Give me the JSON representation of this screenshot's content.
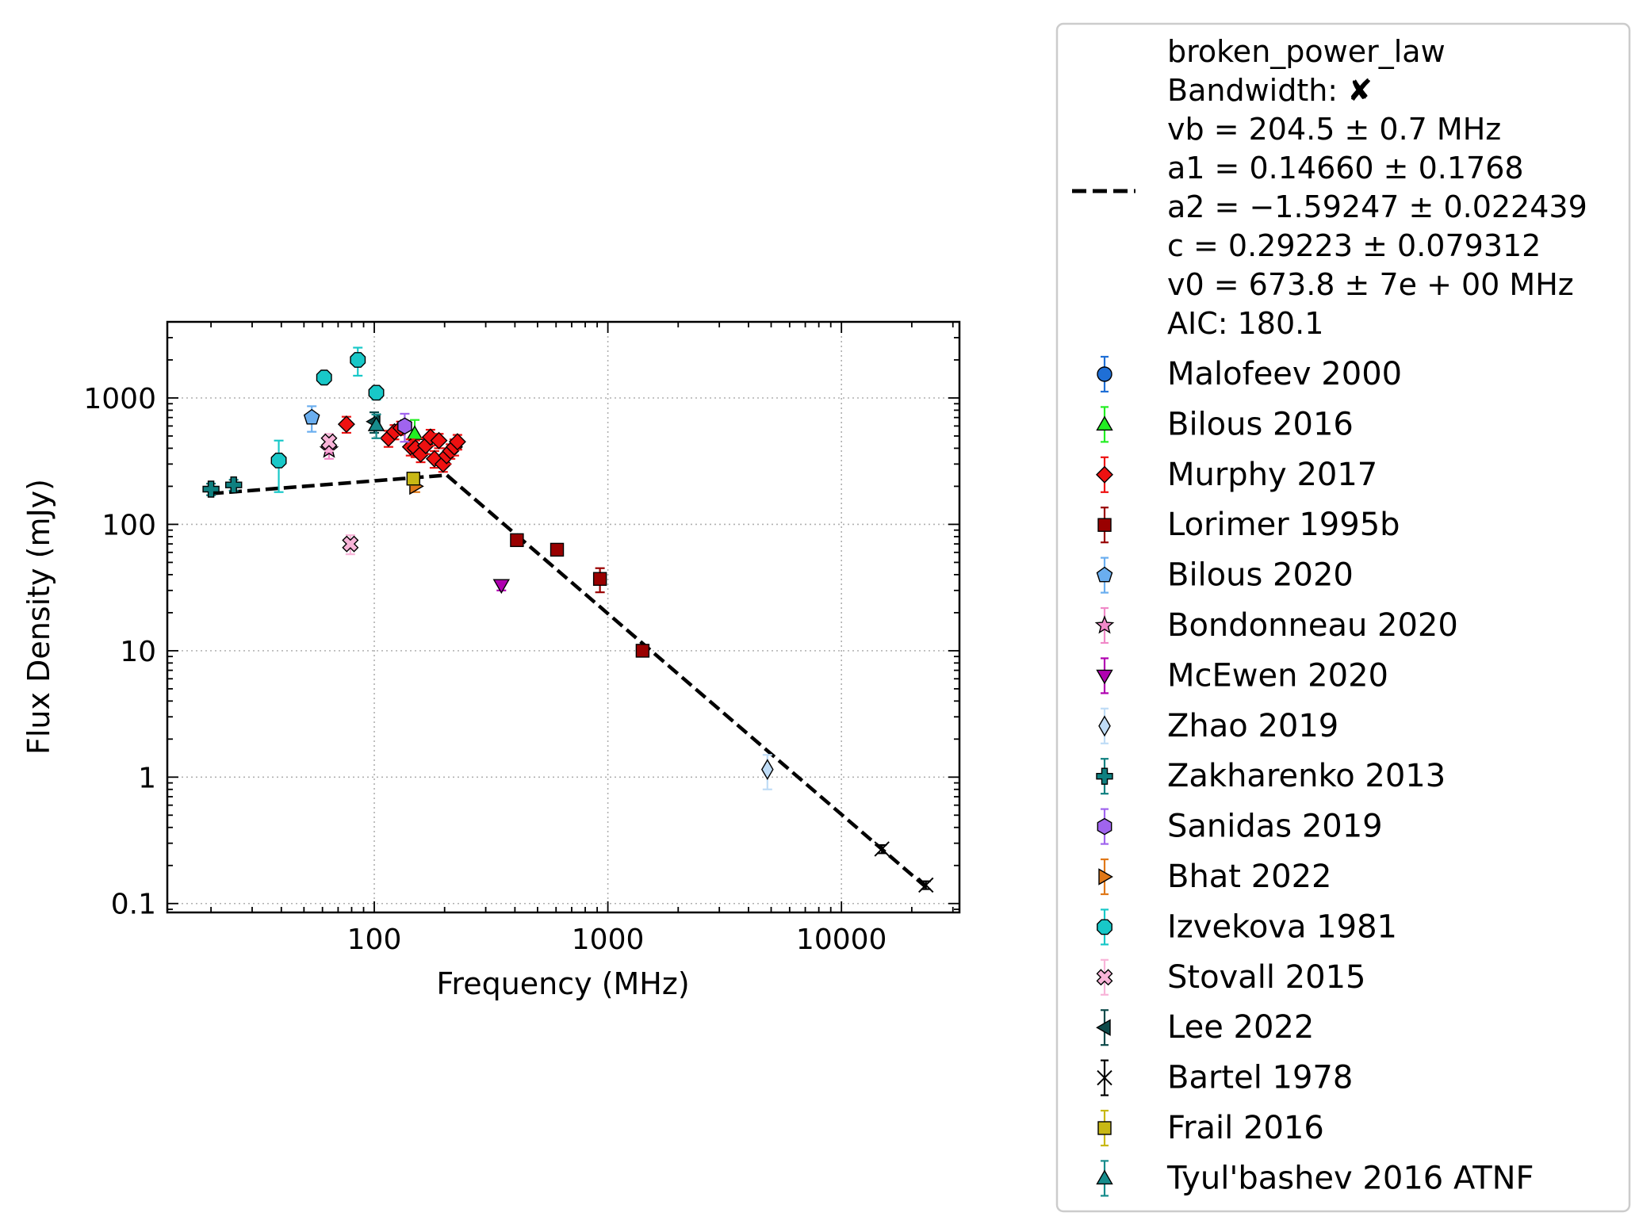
{
  "chart_data": {
    "type": "scatter",
    "title": "",
    "xlabel": "Frequency (MHz)",
    "ylabel": "Flux Density (mJy)",
    "xscale": "log",
    "yscale": "log",
    "xlim": [
      13,
      32000
    ],
    "ylim": [
      0.085,
      4000
    ],
    "grid": true,
    "legend_position": "outside-right",
    "xticks": [
      {
        "value": 100,
        "label": "100"
      },
      {
        "value": 1000,
        "label": "1000"
      },
      {
        "value": 10000,
        "label": "10000"
      }
    ],
    "yticks": [
      {
        "value": 0.1,
        "label": "0.1"
      },
      {
        "value": 1,
        "label": "1"
      },
      {
        "value": 10,
        "label": "10"
      },
      {
        "value": 100,
        "label": "100"
      },
      {
        "value": 1000,
        "label": "1000"
      }
    ],
    "fit": {
      "name": "broken_power_law",
      "style": "dashed",
      "color": "#000000",
      "segments": [
        {
          "x": [
            20,
            204.5
          ],
          "y": [
            175,
            245
          ]
        },
        {
          "x": [
            204.5,
            23000
          ],
          "y": [
            245,
            0.135
          ]
        }
      ],
      "legend_lines": [
        "broken_power_law",
        "Bandwidth: ✘",
        "vb = 204.5 ± 0.7 MHz",
        "a1 = 0.14660 ± 0.1768",
        "a2 = −1.59247 ± 0.022439",
        "c = 0.29223 ± 0.079312",
        "v0 = 673.8 ± 7e + 00 MHz",
        "AIC: 180.1"
      ]
    },
    "series": [
      {
        "name": "Malofeev 2000",
        "marker": "circle",
        "color": "#1f6fd6",
        "points": []
      },
      {
        "name": "Bilous 2016",
        "marker": "triangle-up",
        "color": "#22ee22",
        "points": [
          {
            "x": 149,
            "y": 520,
            "err": 150
          }
        ]
      },
      {
        "name": "Murphy 2017",
        "marker": "diamond",
        "color": "#ee1111",
        "points": [
          {
            "x": 76,
            "y": 620,
            "err": 90
          },
          {
            "x": 115,
            "y": 480,
            "err": 70
          },
          {
            "x": 122,
            "y": 540,
            "err": 70
          },
          {
            "x": 130,
            "y": 580,
            "err": 70
          },
          {
            "x": 143,
            "y": 410,
            "err": 60
          },
          {
            "x": 150,
            "y": 400,
            "err": 60
          },
          {
            "x": 158,
            "y": 360,
            "err": 50
          },
          {
            "x": 166,
            "y": 420,
            "err": 60
          },
          {
            "x": 174,
            "y": 490,
            "err": 70
          },
          {
            "x": 181,
            "y": 330,
            "err": 50
          },
          {
            "x": 189,
            "y": 460,
            "err": 60
          },
          {
            "x": 197,
            "y": 300,
            "err": 40
          },
          {
            "x": 204,
            "y": 350,
            "err": 50
          },
          {
            "x": 212,
            "y": 380,
            "err": 50
          },
          {
            "x": 220,
            "y": 410,
            "err": 60
          },
          {
            "x": 227,
            "y": 450,
            "err": 60
          }
        ]
      },
      {
        "name": "Lorimer 1995b",
        "marker": "square",
        "color": "#990000",
        "points": [
          {
            "x": 408,
            "y": 75,
            "err": 6
          },
          {
            "x": 606,
            "y": 63,
            "err": 6
          },
          {
            "x": 925,
            "y": 37,
            "err": 8
          },
          {
            "x": 1408,
            "y": 10,
            "err": 1
          }
        ]
      },
      {
        "name": "Bilous 2020",
        "marker": "pentagon",
        "color": "#6aaeef",
        "points": [
          {
            "x": 54,
            "y": 700,
            "err": 160
          }
        ]
      },
      {
        "name": "Bondonneau 2020",
        "marker": "star",
        "color": "#f089c8",
        "points": [
          {
            "x": 64,
            "y": 390,
            "err": 60
          }
        ]
      },
      {
        "name": "McEwen 2020",
        "marker": "triangle-down",
        "color": "#b000b0",
        "points": [
          {
            "x": 350,
            "y": 33,
            "err": 3
          }
        ]
      },
      {
        "name": "Zhao 2019",
        "marker": "thin-diamond",
        "color": "#bfdcf6",
        "points": [
          {
            "x": 4820,
            "y": 1.15,
            "err": 0.35
          }
        ]
      },
      {
        "name": "Zakharenko 2013",
        "marker": "plus",
        "color": "#0f8080",
        "points": [
          {
            "x": 20,
            "y": 190,
            "err": 20
          },
          {
            "x": 25,
            "y": 205,
            "err": 20
          }
        ]
      },
      {
        "name": "Sanidas 2019",
        "marker": "hexagon",
        "color": "#a064ee",
        "points": [
          {
            "x": 135,
            "y": 600,
            "err": 150
          }
        ]
      },
      {
        "name": "Bhat 2022",
        "marker": "triangle-right",
        "color": "#e07818",
        "points": [
          {
            "x": 150,
            "y": 200,
            "err": 20
          }
        ]
      },
      {
        "name": "Izvekova 1981",
        "marker": "octagon",
        "color": "#18c8c8",
        "points": [
          {
            "x": 39,
            "y": 320,
            "err": 140
          },
          {
            "x": 61,
            "y": 1450,
            "err": 150
          },
          {
            "x": 85,
            "y": 2000,
            "err": 500
          },
          {
            "x": 102,
            "y": 1100,
            "err": 130
          }
        ]
      },
      {
        "name": "Stovall 2015",
        "marker": "x-filled",
        "color": "#f8b4d8",
        "points": [
          {
            "x": 64,
            "y": 450,
            "err": 70
          },
          {
            "x": 79,
            "y": 70,
            "err": 12
          }
        ]
      },
      {
        "name": "Lee 2022",
        "marker": "triangle-left",
        "color": "#0d4a4a",
        "points": [
          {
            "x": 100,
            "y": 650,
            "err": 120
          }
        ]
      },
      {
        "name": "Bartel 1978",
        "marker": "x",
        "color": "#000000",
        "points": [
          {
            "x": 14900,
            "y": 0.27,
            "err": 0.02
          },
          {
            "x": 23000,
            "y": 0.14,
            "err": 0.01
          }
        ]
      },
      {
        "name": "Frail 2016",
        "marker": "square",
        "color": "#c8b814",
        "points": [
          {
            "x": 147,
            "y": 230,
            "err": 25
          }
        ]
      },
      {
        "name": "Tyul'bashev 2016 ATNF",
        "marker": "triangle-up",
        "color": "#168c8c",
        "points": [
          {
            "x": 102,
            "y": 610,
            "err": 130
          }
        ]
      }
    ]
  }
}
